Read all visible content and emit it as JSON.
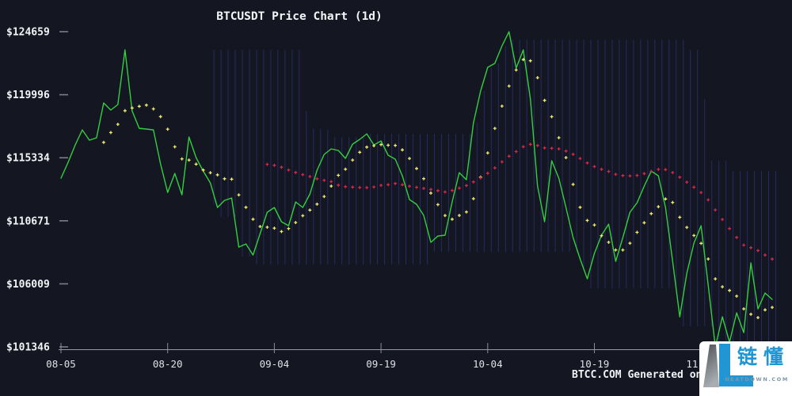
{
  "chart_data": {
    "type": "line",
    "title": "BTCUSDT Price Chart (1d)",
    "symbol": "BTCUSDT",
    "interval": "1d",
    "background_color": "#141621",
    "x_tick_labels": [
      "08-05",
      "08-20",
      "09-04",
      "09-19",
      "10-04",
      "10-19",
      "11-03"
    ],
    "x_tick_day_indices": [
      0,
      15,
      30,
      45,
      60,
      75,
      90
    ],
    "y_tick_labels": [
      "$124659",
      "$119996",
      "$115334",
      "$110671",
      "$106009",
      "$101346"
    ],
    "y_tick_values": [
      124659,
      119996,
      115334,
      110671,
      106009,
      101346
    ],
    "ylim": [
      101346,
      124659
    ],
    "grid": "none",
    "legend": "none",
    "series": [
      {
        "name": "close",
        "type": "line",
        "color": "#33cf40",
        "values": [
          113824,
          114995,
          116283,
          117397,
          116635,
          116811,
          119389,
          118862,
          119272,
          123312,
          118803,
          117514,
          117456,
          117397,
          114878,
          112769,
          114175,
          112593,
          116869,
          115346,
          114350,
          113472,
          111656,
          112183,
          112359,
          108727,
          108961,
          108141,
          109722,
          111304,
          111656,
          110601,
          110308,
          112066,
          111656,
          112652,
          114409,
          115581,
          115991,
          115874,
          115288,
          116342,
          116694,
          117104,
          116284,
          116577,
          115522,
          115229,
          113999,
          112242,
          111890,
          111070,
          109078,
          109547,
          109605,
          112066,
          114233,
          113706,
          117923,
          120266,
          122023,
          122316,
          123605,
          124659,
          121964,
          123312,
          119680,
          113237,
          110602,
          115112,
          113823,
          111656,
          109430,
          107848,
          106383,
          108258,
          109605,
          110425,
          107672,
          109430,
          111304,
          112007,
          113237,
          114350,
          113999,
          111656,
          107672,
          103572,
          106794,
          109020,
          110308,
          105915,
          101346,
          103572,
          101697,
          103865,
          102400,
          107555,
          104157,
          105329,
          104860
        ]
      },
      {
        "name": "ma-short",
        "type": "dots",
        "color": "#ecec72",
        "derived": "sma-of-close",
        "window": 7
      },
      {
        "name": "ma-long",
        "type": "dots",
        "color": "#d2294a",
        "derived": "sma-of-close",
        "window": 30
      },
      {
        "name": "range-band",
        "type": "vertical-lines",
        "color": "#262a63",
        "derived": "rolling-high-low-of-close",
        "window": 25,
        "start_index": 21
      }
    ]
  },
  "footer": {
    "watermark": "BTCC.COM Generated on"
  },
  "logo": {
    "brand": "链懂",
    "domain": "NEATDOWN.COM"
  }
}
